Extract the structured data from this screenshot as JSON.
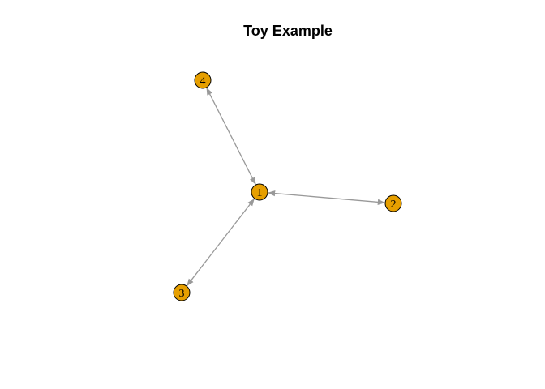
{
  "title": "Toy Example",
  "colors": {
    "node_fill": "#E69F00",
    "node_stroke": "#000000",
    "edge": "#999999"
  },
  "nodes": [
    {
      "id": "1",
      "label": "1"
    },
    {
      "id": "2",
      "label": "2"
    },
    {
      "id": "3",
      "label": "3"
    },
    {
      "id": "4",
      "label": "4"
    }
  ],
  "edges": [
    {
      "from": "1",
      "to": "2",
      "directed": "both"
    },
    {
      "from": "1",
      "to": "3",
      "directed": "both"
    },
    {
      "from": "1",
      "to": "4",
      "directed": "both"
    }
  ]
}
